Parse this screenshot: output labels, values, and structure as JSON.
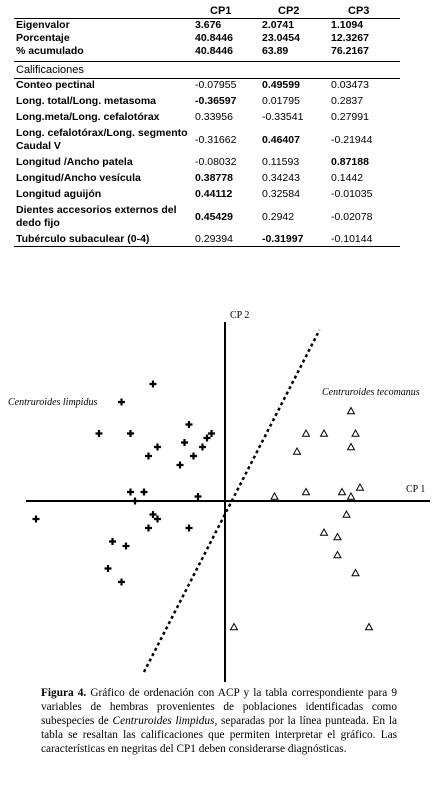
{
  "table": {
    "headers": [
      "",
      "CP1",
      "CP2",
      "CP3"
    ],
    "eigen_rows": [
      {
        "label": "Eigenvalor",
        "v1": "3.676",
        "v2": "2.0741",
        "v3": "1.1094"
      },
      {
        "label": "Porcentaje",
        "v1": "40.8446",
        "v2": "23.0454",
        "v3": "12.3267"
      },
      {
        "label": "% acumulado",
        "v1": "40.8446",
        "v2": "63.89",
        "v3": "76.2167"
      }
    ],
    "section_label": "Calificaciones",
    "score_rows": [
      {
        "label": "Conteo pectinal",
        "v1": "-0.07955",
        "v2": "0.49599",
        "v3": "0.03473",
        "bold": [
          false,
          true,
          false
        ]
      },
      {
        "label": "Long. total/Long. metasoma",
        "v1": "-0.36597",
        "v2": "0.01795",
        "v3": "0.2837",
        "bold": [
          true,
          false,
          false
        ]
      },
      {
        "label": "Long.meta/Long. cefalotórax",
        "v1": "0.33956",
        "v2": "-0.33541",
        "v3": "0.27991",
        "bold": [
          false,
          false,
          false
        ]
      },
      {
        "label": "Long. cefalotórax/Long. segmento Caudal V",
        "v1": "-0.31662",
        "v2": "0.46407",
        "v3": "-0.21944",
        "bold": [
          false,
          true,
          false
        ],
        "tall": true
      },
      {
        "label": "Longitud /Ancho patela",
        "v1": "-0.08032",
        "v2": "0.11593",
        "v3": "0.87188",
        "bold": [
          false,
          false,
          true
        ]
      },
      {
        "label": "Longitud/Ancho vesícula",
        "v1": "0.38778",
        "v2": "0.34243",
        "v3": "0.1442",
        "bold": [
          true,
          false,
          false
        ]
      },
      {
        "label": "Longitud aguijón",
        "v1": "0.44112",
        "v2": "0.32584",
        "v3": "-0.01035",
        "bold": [
          true,
          false,
          false
        ]
      },
      {
        "label": "Dientes accesorios externos del dedo fijo",
        "v1": "0.45429",
        "v2": "0.2942",
        "v3": "-0.02078",
        "bold": [
          true,
          false,
          false
        ],
        "tall": true
      },
      {
        "label": "Tubérculo subaculear (0-4)",
        "v1": "0.29394",
        "v2": "-0.31997",
        "v3": "-0.10144",
        "bold": [
          false,
          true,
          false
        ]
      }
    ]
  },
  "chart_data": {
    "type": "scatter",
    "xlabel": "CP 1",
    "ylabel": "CP 2",
    "xlim": [
      -4.5,
      4.5
    ],
    "ylim": [
      -4.5,
      4.5
    ],
    "grid": false,
    "legend": "none",
    "series": [
      {
        "name": "Centruroides limpidus",
        "marker": "plus",
        "x": [
          -1.6,
          -2.3,
          -2.1,
          -2.8,
          -1.5,
          -1.7,
          -0.8,
          -0.4,
          -0.3,
          -0.5,
          -0.9,
          -0.7,
          -1.0,
          -2.1,
          -0.6,
          -1.8,
          -2.0,
          -1.6,
          -1.5,
          -1.7,
          -0.8,
          -4.2,
          -2.5,
          -2.2,
          -2.6,
          -2.3
        ],
        "y": [
          2.6,
          2.2,
          1.5,
          1.5,
          1.2,
          1.0,
          1.7,
          1.4,
          1.5,
          1.2,
          1.3,
          1.0,
          0.8,
          0.2,
          0.1,
          0.2,
          0.0,
          -0.3,
          -0.4,
          -0.6,
          -0.6,
          -0.4,
          -0.9,
          -1.0,
          -1.5,
          -1.8
        ]
      },
      {
        "name": "Centruroides tecomanus",
        "marker": "triangle",
        "x": [
          2.8,
          1.8,
          2.2,
          2.9,
          1.6,
          2.8,
          1.1,
          1.8,
          2.6,
          3.0,
          2.8,
          2.7,
          2.2,
          2.5,
          2.5,
          2.9,
          0.2,
          3.2
        ],
        "y": [
          2.0,
          1.5,
          1.5,
          1.5,
          1.1,
          1.2,
          0.1,
          0.2,
          0.2,
          0.3,
          0.1,
          -0.3,
          -0.7,
          -0.8,
          -1.2,
          -1.6,
          -2.8,
          -2.8
        ]
      }
    ],
    "separator": {
      "x1": -1.8,
      "y1": -3.8,
      "x2": 2.1,
      "y2": 3.8
    },
    "annotations": [
      "Centruroides limpidus",
      "Centruroides tecomanus"
    ]
  },
  "caption": {
    "label": "Figura 4.",
    "text1": "Gráfico de ordenación con ACP y la tabla correspondiente para 9 variables de hembras provenientes de poblaciones identificadas como subespecies de",
    "italic1": "Centruroides limpidus",
    "text2": ", separadas por la línea punteada. En la tabla se resaltan las calificaciones que permiten interpretar el gráfico. Las características en negritas del CP1 deben considerarse diagnósticas."
  }
}
